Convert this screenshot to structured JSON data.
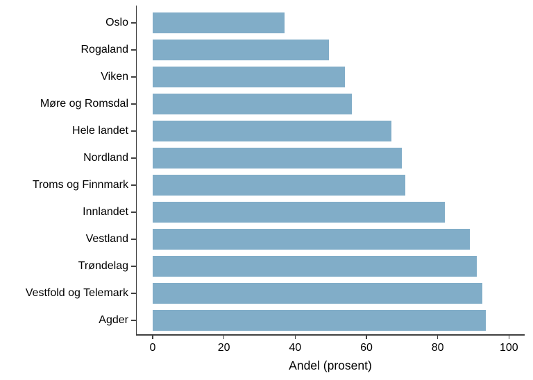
{
  "chart_data": {
    "type": "bar",
    "orientation": "horizontal",
    "title": "",
    "xlabel": "Andel (prosent)",
    "ylabel": "",
    "categories": [
      "Oslo",
      "Rogaland",
      "Viken",
      "Møre og Romsdal",
      "Hele landet",
      "Nordland",
      "Troms og Finnmark",
      "Innlandet",
      "Vestland",
      "Trøndelag",
      "Vestfold og Telemark",
      "Agder"
    ],
    "values": [
      37,
      49.5,
      54,
      56,
      67,
      70,
      71,
      82,
      89,
      91,
      92.5,
      93.5
    ],
    "xlim": [
      0,
      100
    ],
    "xticks": [
      0,
      20,
      40,
      60,
      80,
      100
    ],
    "grid": false,
    "legend": false,
    "bar_color": "#81ADC8",
    "axis_color": "#404040",
    "text_color": "#000000",
    "background_color": "#FFFFFF"
  }
}
